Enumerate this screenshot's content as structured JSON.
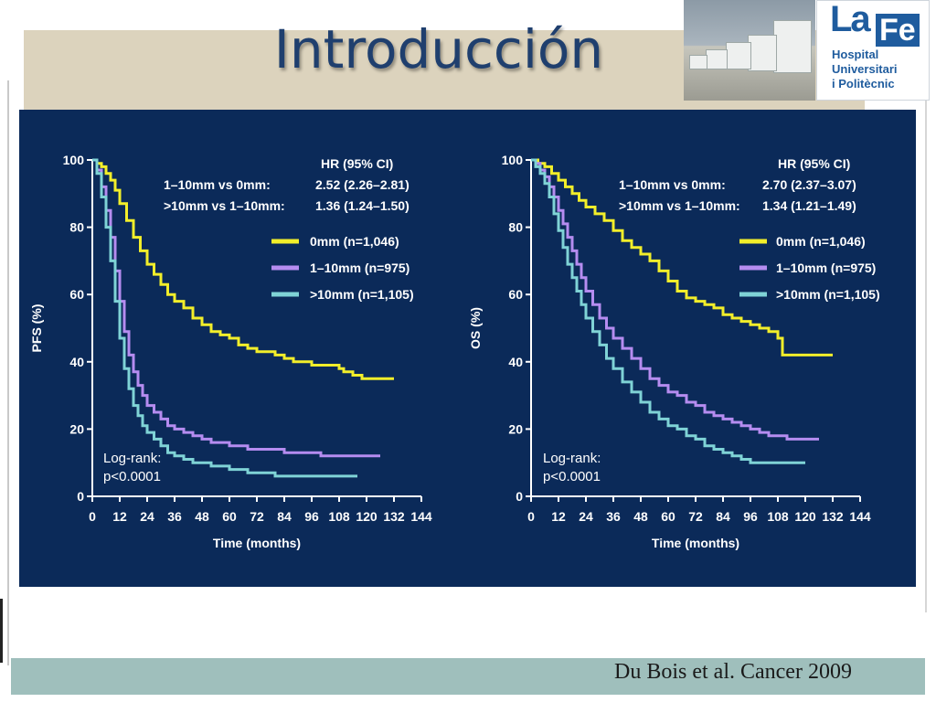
{
  "slide": {
    "title": "Introducción",
    "citation": "Du Bois et al. Cancer 2009"
  },
  "logo": {
    "la": "La",
    "fe": "Fe",
    "line1": "Hospital",
    "line2": "Universitari",
    "line3": "i Politècnic"
  },
  "colors": {
    "panel": "#0b2a59",
    "yellow": "#f2ee2a",
    "purple": "#b58cf0",
    "cyan": "#7fd3d6",
    "title": "#1f3f6e"
  },
  "chart_data": [
    {
      "type": "line",
      "ylabel": "PFS (%)",
      "xlabel": "Time (months)",
      "xlim": [
        0,
        144
      ],
      "ylim": [
        0,
        100
      ],
      "xticks": [
        "0",
        "12",
        "24",
        "36",
        "48",
        "60",
        "72",
        "84",
        "96",
        "108",
        "120",
        "132",
        "144"
      ],
      "yticks": [
        "0",
        "20",
        "40",
        "60",
        "80",
        "100"
      ],
      "hr_header": "HR (95% CI)",
      "hr_rows": [
        {
          "label": "1–10mm vs 0mm:",
          "value": "2.52 (2.26–2.81)"
        },
        {
          "label": ">10mm vs 1–10mm:",
          "value": "1.36 (1.24–1.50)"
        }
      ],
      "logrank": [
        "Log-rank:",
        "p<0.0001"
      ],
      "series": [
        {
          "name": "0mm (n=1,046)",
          "color": "#f2ee2a",
          "x": [
            0,
            2,
            4,
            6,
            8,
            10,
            12,
            15,
            18,
            21,
            24,
            27,
            30,
            33,
            36,
            40,
            44,
            48,
            52,
            56,
            60,
            64,
            68,
            72,
            76,
            80,
            84,
            88,
            92,
            96,
            100,
            104,
            108,
            110,
            114,
            118,
            122,
            126,
            132
          ],
          "y": [
            100,
            99,
            98,
            96,
            94,
            91,
            87,
            82,
            77,
            73,
            69,
            66,
            63,
            60,
            58,
            56,
            53,
            51,
            49,
            48,
            47,
            45,
            44,
            43,
            43,
            42,
            41,
            40,
            40,
            39,
            39,
            39,
            38,
            37,
            36,
            35,
            35,
            35,
            35
          ]
        },
        {
          "name": "1–10mm (n=975)",
          "color": "#b58cf0",
          "x": [
            0,
            2,
            4,
            6,
            8,
            10,
            12,
            14,
            16,
            18,
            20,
            22,
            24,
            27,
            30,
            33,
            36,
            40,
            44,
            48,
            52,
            56,
            60,
            64,
            68,
            72,
            76,
            80,
            84,
            88,
            92,
            96,
            100,
            104,
            108,
            112,
            116,
            120,
            126
          ],
          "y": [
            100,
            97,
            92,
            85,
            77,
            67,
            58,
            49,
            42,
            37,
            33,
            30,
            27,
            25,
            23,
            21,
            20,
            19,
            18,
            17,
            16,
            16,
            15,
            15,
            14,
            14,
            14,
            14,
            13,
            13,
            13,
            13,
            12,
            12,
            12,
            12,
            12,
            12,
            12
          ]
        },
        {
          "name": ">10mm (n=1,105)",
          "color": "#7fd3d6",
          "x": [
            0,
            2,
            4,
            6,
            8,
            10,
            12,
            14,
            16,
            18,
            20,
            22,
            24,
            27,
            30,
            33,
            36,
            40,
            44,
            48,
            52,
            56,
            60,
            64,
            68,
            72,
            76,
            80,
            84,
            88,
            92,
            96,
            100,
            104,
            108,
            112,
            116
          ],
          "y": [
            100,
            96,
            89,
            80,
            70,
            58,
            47,
            38,
            32,
            27,
            24,
            21,
            19,
            17,
            15,
            13,
            12,
            11,
            10,
            10,
            9,
            9,
            8,
            8,
            7,
            7,
            7,
            6,
            6,
            6,
            6,
            6,
            6,
            6,
            6,
            6,
            6
          ]
        }
      ]
    },
    {
      "type": "line",
      "ylabel": "OS (%)",
      "xlabel": "Time (months)",
      "xlim": [
        0,
        144
      ],
      "ylim": [
        0,
        100
      ],
      "xticks": [
        "0",
        "12",
        "24",
        "36",
        "48",
        "60",
        "72",
        "84",
        "96",
        "108",
        "120",
        "132",
        "144"
      ],
      "yticks": [
        "0",
        "20",
        "40",
        "60",
        "80",
        "100"
      ],
      "hr_header": "HR (95% CI)",
      "hr_rows": [
        {
          "label": "1–10mm vs 0mm:",
          "value": "2.70 (2.37–3.07)"
        },
        {
          "label": ">10mm vs 1–10mm:",
          "value": "1.34 (1.21–1.49)"
        }
      ],
      "logrank": [
        "Log-rank:",
        "p<0.0001"
      ],
      "series": [
        {
          "name": "0mm (n=1,046)",
          "color": "#f2ee2a",
          "x": [
            0,
            3,
            6,
            9,
            12,
            15,
            18,
            21,
            24,
            28,
            32,
            36,
            40,
            44,
            48,
            52,
            56,
            60,
            64,
            68,
            72,
            76,
            80,
            84,
            88,
            92,
            96,
            100,
            104,
            108,
            110,
            114,
            120,
            126,
            132
          ],
          "y": [
            100,
            99,
            98,
            96,
            94,
            92,
            90,
            88,
            86,
            84,
            82,
            79,
            76,
            74,
            72,
            70,
            67,
            64,
            61,
            59,
            58,
            57,
            56,
            54,
            53,
            52,
            51,
            50,
            49,
            47,
            42,
            42,
            42,
            42,
            42
          ]
        },
        {
          "name": "1–10mm (n=975)",
          "color": "#b58cf0",
          "x": [
            0,
            2,
            4,
            6,
            8,
            10,
            12,
            14,
            16,
            18,
            20,
            22,
            24,
            27,
            30,
            33,
            36,
            40,
            44,
            48,
            52,
            56,
            60,
            64,
            68,
            72,
            76,
            80,
            84,
            88,
            92,
            96,
            100,
            104,
            108,
            112,
            116,
            120,
            126
          ],
          "y": [
            100,
            99,
            97,
            95,
            92,
            89,
            85,
            81,
            77,
            73,
            69,
            65,
            61,
            57,
            53,
            50,
            47,
            44,
            41,
            38,
            35,
            33,
            31,
            30,
            28,
            27,
            25,
            24,
            23,
            22,
            21,
            20,
            19,
            18,
            18,
            17,
            17,
            17,
            17
          ]
        },
        {
          "name": ">10mm (n=1,105)",
          "color": "#7fd3d6",
          "x": [
            0,
            2,
            4,
            6,
            8,
            10,
            12,
            14,
            16,
            18,
            20,
            22,
            24,
            27,
            30,
            33,
            36,
            40,
            44,
            48,
            52,
            56,
            60,
            64,
            68,
            72,
            76,
            80,
            84,
            88,
            92,
            96,
            100,
            104,
            108,
            112,
            116,
            120
          ],
          "y": [
            100,
            98,
            96,
            93,
            89,
            84,
            79,
            74,
            69,
            65,
            61,
            57,
            53,
            49,
            45,
            41,
            38,
            34,
            31,
            28,
            25,
            23,
            21,
            20,
            18,
            17,
            15,
            14,
            13,
            12,
            11,
            10,
            10,
            10,
            10,
            10,
            10,
            10
          ]
        }
      ]
    }
  ]
}
